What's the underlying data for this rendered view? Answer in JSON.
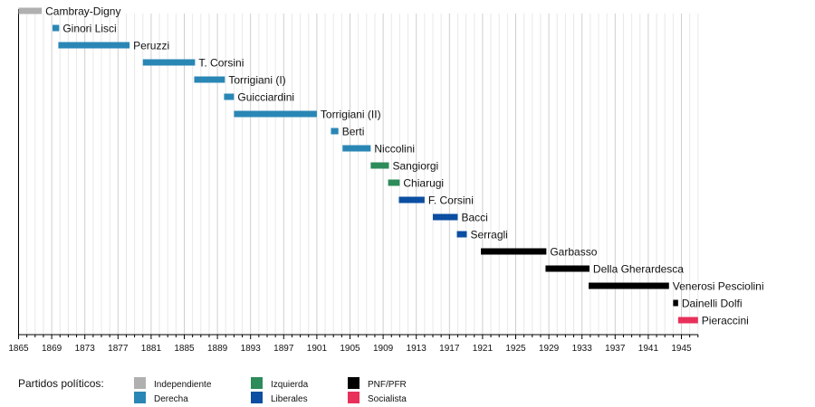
{
  "chart_data": {
    "type": "timeline",
    "xlim": [
      1865,
      1947
    ],
    "x_ticks": [
      "1865",
      "1869",
      "1873",
      "1877",
      "1881",
      "1885",
      "1889",
      "1893",
      "1897",
      "1901",
      "1905",
      "1909",
      "1913",
      "1917",
      "1921",
      "1925",
      "1929",
      "1933",
      "1937",
      "1941",
      "1945"
    ],
    "grid": true,
    "bars": [
      {
        "name": "Cambray-Digny",
        "start": 1865,
        "end": 1867.8,
        "party": "Independiente"
      },
      {
        "name": "Ginori Lisci",
        "start": 1869.1,
        "end": 1869.9,
        "party": "Derecha"
      },
      {
        "name": "Peruzzi",
        "start": 1869.8,
        "end": 1878.4,
        "party": "Derecha"
      },
      {
        "name": "T. Corsini",
        "start": 1880,
        "end": 1886.3,
        "party": "Derecha"
      },
      {
        "name": "Torrigiani (I)",
        "start": 1886.2,
        "end": 1889.9,
        "party": "Derecha"
      },
      {
        "name": "Guicciardini",
        "start": 1889.8,
        "end": 1891,
        "party": "Derecha"
      },
      {
        "name": "Torrigiani (II)",
        "start": 1891,
        "end": 1901,
        "party": "Derecha"
      },
      {
        "name": "Berti",
        "start": 1902.7,
        "end": 1903.6,
        "party": "Derecha"
      },
      {
        "name": "Niccolini",
        "start": 1904.1,
        "end": 1907.5,
        "party": "Derecha"
      },
      {
        "name": "Sangiorgi",
        "start": 1907.5,
        "end": 1909.7,
        "party": "Izquierda"
      },
      {
        "name": "Chiarugi",
        "start": 1909.6,
        "end": 1911,
        "party": "Izquierda"
      },
      {
        "name": "F. Corsini",
        "start": 1910.9,
        "end": 1914,
        "party": "Liberales"
      },
      {
        "name": "Bacci",
        "start": 1915,
        "end": 1918,
        "party": "Liberales"
      },
      {
        "name": "Serragli",
        "start": 1917.9,
        "end": 1919.1,
        "party": "Liberales"
      },
      {
        "name": "Garbasso",
        "start": 1920.8,
        "end": 1928.7,
        "party": "PNF/PFR"
      },
      {
        "name": "Della Gherardesca",
        "start": 1928.6,
        "end": 1933.9,
        "party": "PNF/PFR"
      },
      {
        "name": "Venerosi Pesciolini",
        "start": 1933.8,
        "end": 1943.5,
        "party": "PNF/PFR"
      },
      {
        "name": "Dainelli Dolfi",
        "start": 1944,
        "end": 1944.6,
        "party": "PNF/PFR"
      },
      {
        "name": "Pieraccini",
        "start": 1944.6,
        "end": 1947,
        "party": "Socialista"
      }
    ],
    "legend": {
      "title": "Partidos políticos:",
      "position": "bottom",
      "entries": [
        {
          "name": "Independiente",
          "color": "#b0b0b0"
        },
        {
          "name": "Derecha",
          "color": "#2a87b5"
        },
        {
          "name": "Izquierda",
          "color": "#2e8b5a"
        },
        {
          "name": "Liberales",
          "color": "#0b4ea2"
        },
        {
          "name": "PNF/PFR",
          "color": "#000000"
        },
        {
          "name": "Socialista",
          "color": "#e8305a"
        }
      ]
    }
  }
}
